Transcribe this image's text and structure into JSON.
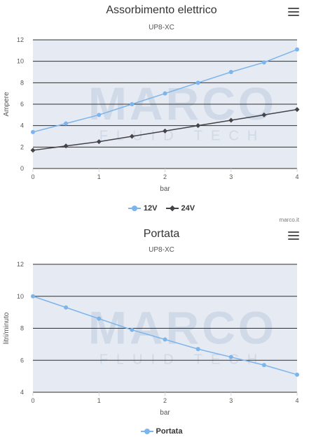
{
  "charts": [
    {
      "title": "Assorbimento elettrico",
      "subtitle": "UP8-XC",
      "menu_icon": "hamburger-menu-icon",
      "credit": "marco.it",
      "watermark": {
        "line1": "MARCO",
        "line2": "FLUID TECH"
      }
    },
    {
      "title": "Portata",
      "subtitle": "UP8-XC",
      "menu_icon": "hamburger-menu-icon",
      "watermark": {
        "line1": "MARCO",
        "line2": "FLUID TECH"
      }
    }
  ],
  "chart_data": [
    {
      "type": "line",
      "title": "Assorbimento elettrico",
      "subtitle": "UP8-XC",
      "xlabel": "bar",
      "ylabel": "Ampere",
      "xlim": [
        0,
        4
      ],
      "ylim": [
        0,
        12
      ],
      "xticks": [
        0,
        1,
        2,
        3,
        4
      ],
      "yticks": [
        0,
        2,
        4,
        6,
        8,
        10,
        12
      ],
      "grid": true,
      "legend": "bottom-center",
      "x": [
        0,
        0.5,
        1,
        1.5,
        2,
        2.5,
        3,
        3.5,
        4
      ],
      "series": [
        {
          "name": "12V",
          "color": "#7cb5ec",
          "marker": "circle",
          "values": [
            3.4,
            4.2,
            5.0,
            6.0,
            7.0,
            8.0,
            9.0,
            9.9,
            11.1
          ]
        },
        {
          "name": "24V",
          "color": "#434348",
          "marker": "diamond",
          "values": [
            1.7,
            2.1,
            2.5,
            3.0,
            3.5,
            4.0,
            4.5,
            5.0,
            5.5
          ]
        }
      ]
    },
    {
      "type": "line",
      "title": "Portata",
      "subtitle": "UP8-XC",
      "xlabel": "bar",
      "ylabel": "litri/minuto",
      "xlim": [
        0,
        4
      ],
      "ylim": [
        4,
        12
      ],
      "xticks": [
        0,
        1,
        2,
        3,
        4
      ],
      "yticks": [
        4,
        6,
        8,
        10,
        12
      ],
      "grid": true,
      "legend": "bottom-center",
      "x": [
        0,
        0.5,
        1,
        1.5,
        2,
        2.5,
        3,
        3.5,
        4
      ],
      "series": [
        {
          "name": "Portata",
          "color": "#7cb5ec",
          "marker": "circle",
          "values": [
            10.0,
            9.3,
            8.6,
            7.9,
            7.3,
            6.7,
            6.2,
            5.7,
            5.1
          ]
        }
      ]
    }
  ]
}
